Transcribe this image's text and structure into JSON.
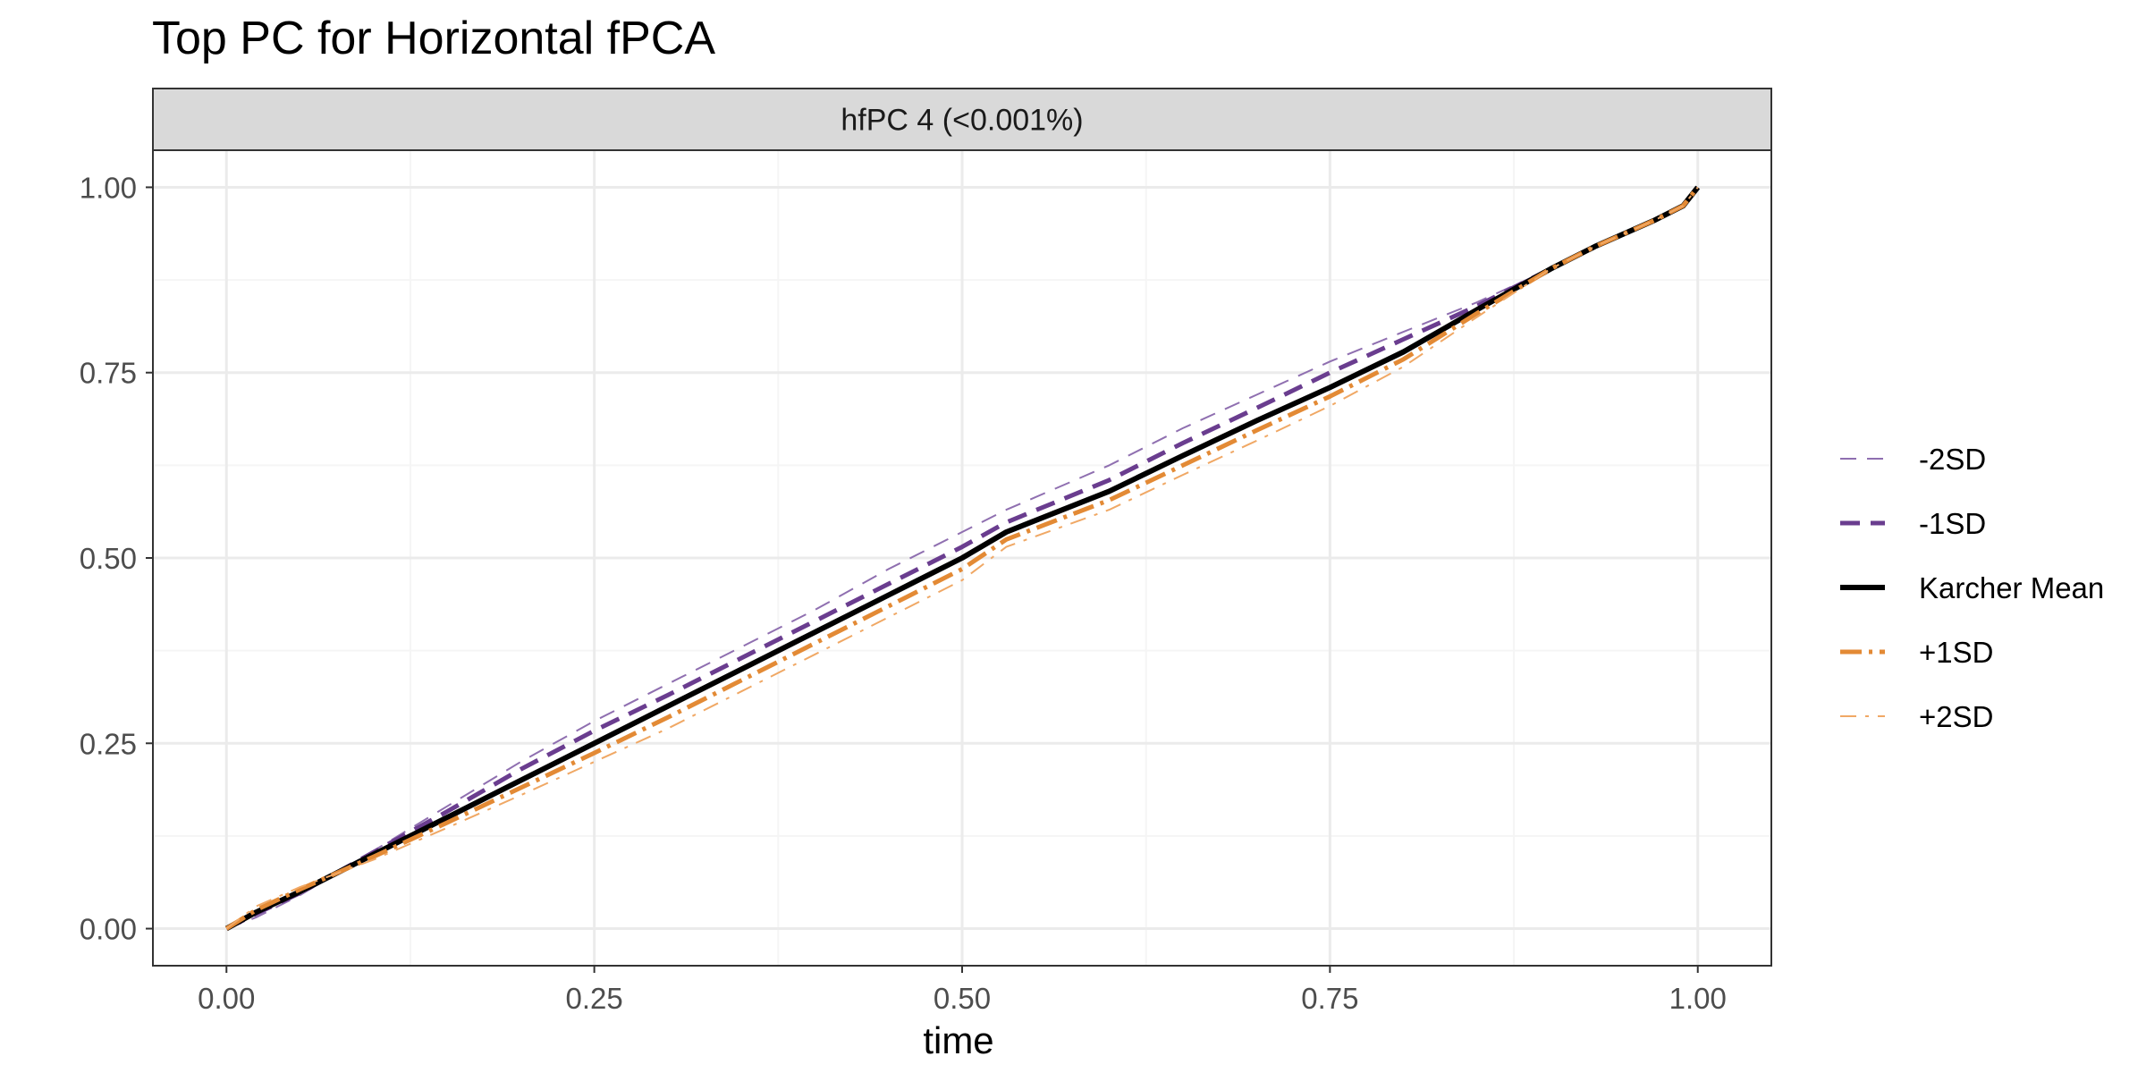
{
  "chart_data": {
    "type": "line",
    "title": "Top PC for Horizontal fPCA",
    "panel_label": "hfPC 4 (<0.001%)",
    "xlabel": "time",
    "ylabel": "",
    "xlim": [
      -0.05,
      1.05
    ],
    "ylim": [
      -0.05,
      1.05
    ],
    "x_ticks": [
      0.0,
      0.25,
      0.5,
      0.75,
      1.0
    ],
    "x_tick_labels": [
      "0.00",
      "0.25",
      "0.50",
      "0.75",
      "1.00"
    ],
    "y_ticks": [
      0.0,
      0.25,
      0.5,
      0.75,
      1.0
    ],
    "y_tick_labels": [
      "0.00",
      "0.25",
      "0.50",
      "0.75",
      "1.00"
    ],
    "grid": true,
    "legend_position": "right",
    "x": [
      0.0,
      0.02,
      0.05,
      0.1,
      0.15,
      0.2,
      0.25,
      0.3,
      0.35,
      0.4,
      0.45,
      0.5,
      0.53,
      0.6,
      0.65,
      0.7,
      0.75,
      0.8,
      0.85,
      0.9,
      0.93,
      0.97,
      0.99,
      1.0
    ],
    "series": [
      {
        "name": "-2SD",
        "color": "#8f6fb0",
        "dash": "18,12",
        "width": 2,
        "values": [
          0.0,
          0.015,
          0.045,
          0.105,
          0.165,
          0.225,
          0.28,
          0.33,
          0.38,
          0.43,
          0.485,
          0.535,
          0.565,
          0.625,
          0.675,
          0.72,
          0.765,
          0.805,
          0.845,
          0.89,
          0.92,
          0.955,
          0.975,
          1.0
        ]
      },
      {
        "name": "-1SD",
        "color": "#6a3d8f",
        "dash": "22,12",
        "width": 5,
        "values": [
          0.0,
          0.02,
          0.048,
          0.103,
          0.158,
          0.215,
          0.267,
          0.315,
          0.365,
          0.415,
          0.465,
          0.515,
          0.548,
          0.605,
          0.655,
          0.702,
          0.75,
          0.795,
          0.84,
          0.89,
          0.92,
          0.955,
          0.975,
          1.0
        ]
      },
      {
        "name": "Karcher Mean",
        "color": "#000000",
        "dash": "",
        "width": 6,
        "values": [
          0.0,
          0.022,
          0.05,
          0.1,
          0.15,
          0.2,
          0.25,
          0.3,
          0.35,
          0.4,
          0.45,
          0.5,
          0.535,
          0.59,
          0.638,
          0.685,
          0.73,
          0.778,
          0.835,
          0.89,
          0.92,
          0.955,
          0.975,
          1.0
        ]
      },
      {
        "name": "+1SD",
        "color": "#e38a35",
        "dash": "24,8,4,8",
        "width": 5,
        "values": [
          0.0,
          0.025,
          0.053,
          0.097,
          0.143,
          0.19,
          0.237,
          0.285,
          0.335,
          0.385,
          0.435,
          0.485,
          0.525,
          0.578,
          0.625,
          0.672,
          0.718,
          0.768,
          0.83,
          0.89,
          0.92,
          0.955,
          0.975,
          1.0
        ]
      },
      {
        "name": "+2SD",
        "color": "#f0a865",
        "dash": "18,10,4,10",
        "width": 2,
        "values": [
          0.0,
          0.03,
          0.056,
          0.093,
          0.136,
          0.18,
          0.225,
          0.27,
          0.32,
          0.37,
          0.42,
          0.47,
          0.515,
          0.565,
          0.612,
          0.658,
          0.705,
          0.758,
          0.825,
          0.89,
          0.92,
          0.955,
          0.975,
          1.0
        ]
      }
    ],
    "colors": {
      "panel_border": "#333333",
      "grid_major": "#ebebeb",
      "grid_minor": "#f5f5f5",
      "strip_fill": "#d9d9d9",
      "tick_mark": "#333333"
    }
  }
}
